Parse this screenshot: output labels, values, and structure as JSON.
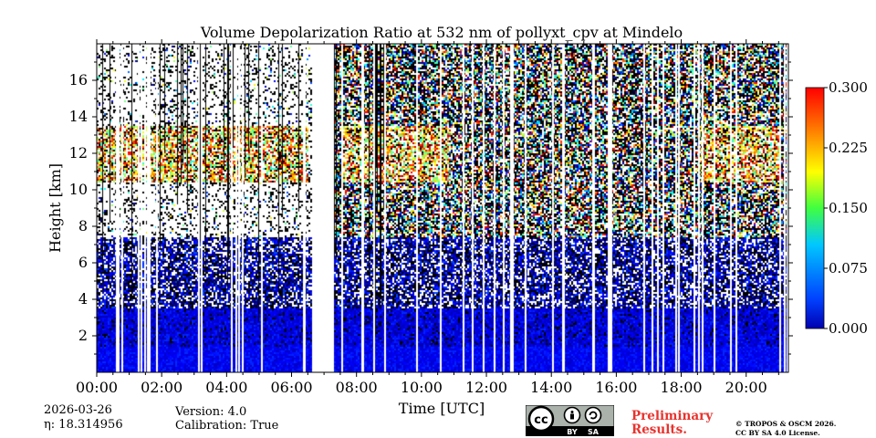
{
  "chart_data": {
    "type": "heatmap",
    "title": "Volume Depolarization Ratio at 532 nm of pollyxt_cpv at Mindelo",
    "xlabel": "Time [UTC]",
    "ylabel": "Height [km]",
    "x_range_hours": [
      0,
      21.3
    ],
    "ylim": [
      0,
      18
    ],
    "x_ticks": [
      0,
      2,
      4,
      6,
      8,
      10,
      12,
      14,
      16,
      18,
      20
    ],
    "x_tick_labels": [
      "00:00",
      "02:00",
      "04:00",
      "06:00",
      "08:00",
      "10:00",
      "12:00",
      "14:00",
      "16:00",
      "18:00",
      "20:00"
    ],
    "y_ticks": [
      2,
      4,
      6,
      8,
      10,
      12,
      14,
      16
    ],
    "y_tick_labels": [
      "2",
      "4",
      "6",
      "8",
      "10",
      "12",
      "14",
      "16"
    ],
    "colorbar": {
      "vmin": 0.0,
      "vmax": 0.3,
      "ticks": [
        0.0,
        0.075,
        0.15,
        0.225,
        0.3
      ],
      "tick_labels": [
        "0.000",
        "0.075",
        "0.150",
        "0.225",
        "0.300"
      ],
      "colormap": "jet"
    },
    "features": {
      "cirrus_layer_km": [
        10.5,
        13.5
      ],
      "cirrus_time_hours": [
        [
          0.0,
          6.5
        ],
        [
          7.5,
          10.8
        ],
        [
          18.5,
          21.0
        ]
      ],
      "boundary_layer_top_km": 1.5,
      "aerosol_layer_top_km": 6.0,
      "data_gap_hours": [
        [
          6.6,
          7.3
        ]
      ],
      "noisy_region_hours": [
        7.3,
        21.3
      ]
    }
  },
  "footer": {
    "date": "2026-03-26",
    "eta_label": "η: 18.314956",
    "version": "Version: 4.0",
    "calibration": "Calibration: True",
    "preliminary_line1": "Preliminary",
    "preliminary_line2": "Results.",
    "copyright_line1": "© TROPOS & OSCM 2026.",
    "copyright_line2": "CC BY SA 4.0 License.",
    "license_badge_by": "BY",
    "license_badge_sa": "SA",
    "preliminary_color": "#e8332e"
  }
}
